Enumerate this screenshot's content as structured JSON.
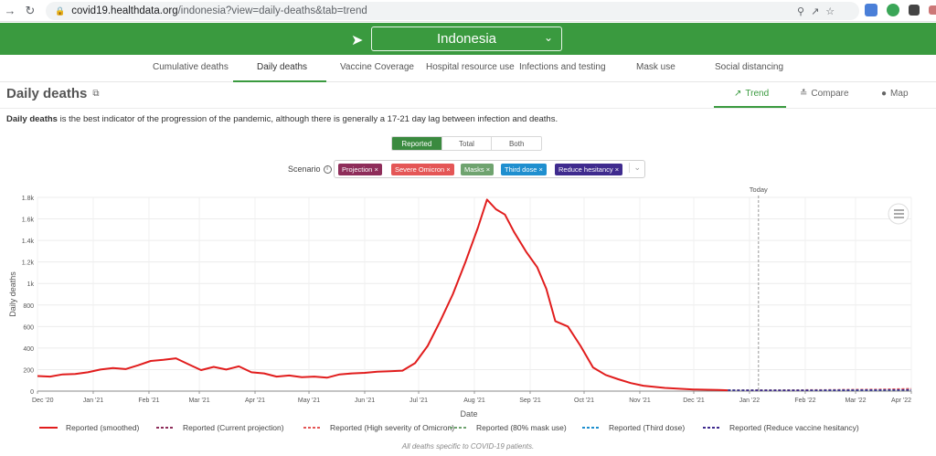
{
  "browser": {
    "url_host": "covid19.healthdata.org",
    "url_path": "/indonesia?view=daily-deaths&tab=trend"
  },
  "header": {
    "country": "Indonesia"
  },
  "tabs": [
    "Cumulative deaths",
    "Daily deaths",
    "Vaccine Coverage",
    "Hospital resource use",
    "Infections and testing",
    "Mask use",
    "Social distancing"
  ],
  "active_tab": "Daily deaths",
  "page": {
    "title": "Daily deaths",
    "view_tabs": [
      "Trend",
      "Compare",
      "Map"
    ],
    "active_view": "Trend",
    "description_bold": "Daily deaths",
    "description_rest": " is the best indicator of the progression of the pandemic, although there is generally a 17-21 day lag between infection and deaths."
  },
  "toggle": {
    "options": [
      "Reported",
      "Total",
      "Both"
    ],
    "selected": "Reported"
  },
  "scenario": {
    "label": "Scenario",
    "chips": [
      {
        "label": "Projection",
        "color": "#8e2d5a"
      },
      {
        "label": "Severe Omicron",
        "color": "#e45656"
      },
      {
        "label": "Masks",
        "color": "#6fa36f"
      },
      {
        "label": "Third dose",
        "color": "#1f8fcf"
      },
      {
        "label": "Reduce hesitancy",
        "color": "#3f2b8e"
      }
    ]
  },
  "footnote": "All deaths specific to COVID-19 patients.",
  "chart_data": {
    "type": "line",
    "xlabel": "Date",
    "ylabel": "Daily deaths",
    "ylim": [
      0,
      1800
    ],
    "yticks": [
      0,
      200,
      400,
      600,
      800,
      1000,
      1200,
      1400,
      1600,
      1800
    ],
    "ytick_labels": [
      "0",
      "200",
      "400",
      "600",
      "800",
      "1k",
      "1.2k",
      "1.4k",
      "1.6k",
      "1.8k"
    ],
    "x_range": [
      "2020-12-01",
      "2022-04-01"
    ],
    "x_ticks": [
      "2020-12-01",
      "2021-01-01",
      "2021-02-01",
      "2021-03-01",
      "2021-04-01",
      "2021-05-01",
      "2021-06-01",
      "2021-07-01",
      "2021-08-01",
      "2021-09-01",
      "2021-10-01",
      "2021-11-01",
      "2021-12-01",
      "2022-01-01",
      "2022-02-01",
      "2022-03-01",
      "2022-04-01"
    ],
    "x_tick_labels": [
      "Dec '20",
      "Jan '21",
      "Feb '21",
      "Mar '21",
      "Apr '21",
      "May '21",
      "Jun '21",
      "Jul '21",
      "Aug '21",
      "Sep '21",
      "Oct '21",
      "Nov '21",
      "Dec '21",
      "Jan '22",
      "Feb '22",
      "Mar '22",
      "Apr '22"
    ],
    "today": {
      "date": "2022-01-06",
      "label": "Today"
    },
    "grid": true,
    "legend_position": "bottom",
    "series": [
      {
        "name": "Reported (smoothed)",
        "color": "#e11d1d",
        "dash": "solid",
        "points": [
          [
            "2020-12-01",
            140
          ],
          [
            "2020-12-08",
            135
          ],
          [
            "2020-12-15",
            155
          ],
          [
            "2020-12-22",
            160
          ],
          [
            "2020-12-29",
            175
          ],
          [
            "2021-01-05",
            200
          ],
          [
            "2021-01-12",
            215
          ],
          [
            "2021-01-19",
            205
          ],
          [
            "2021-01-26",
            240
          ],
          [
            "2021-02-02",
            280
          ],
          [
            "2021-02-09",
            290
          ],
          [
            "2021-02-16",
            305
          ],
          [
            "2021-02-23",
            250
          ],
          [
            "2021-03-02",
            195
          ],
          [
            "2021-03-09",
            225
          ],
          [
            "2021-03-16",
            200
          ],
          [
            "2021-03-23",
            230
          ],
          [
            "2021-03-30",
            175
          ],
          [
            "2021-04-06",
            165
          ],
          [
            "2021-04-13",
            135
          ],
          [
            "2021-04-20",
            145
          ],
          [
            "2021-04-27",
            130
          ],
          [
            "2021-05-04",
            135
          ],
          [
            "2021-05-11",
            125
          ],
          [
            "2021-05-18",
            155
          ],
          [
            "2021-05-25",
            165
          ],
          [
            "2021-06-01",
            170
          ],
          [
            "2021-06-08",
            180
          ],
          [
            "2021-06-15",
            185
          ],
          [
            "2021-06-22",
            190
          ],
          [
            "2021-06-29",
            260
          ],
          [
            "2021-07-06",
            420
          ],
          [
            "2021-07-13",
            650
          ],
          [
            "2021-07-20",
            900
          ],
          [
            "2021-07-27",
            1200
          ],
          [
            "2021-08-03",
            1520
          ],
          [
            "2021-08-08",
            1780
          ],
          [
            "2021-08-13",
            1690
          ],
          [
            "2021-08-18",
            1640
          ],
          [
            "2021-08-23",
            1480
          ],
          [
            "2021-08-30",
            1290
          ],
          [
            "2021-09-05",
            1150
          ],
          [
            "2021-09-10",
            950
          ],
          [
            "2021-09-15",
            650
          ],
          [
            "2021-09-22",
            600
          ],
          [
            "2021-09-29",
            420
          ],
          [
            "2021-10-06",
            220
          ],
          [
            "2021-10-13",
            150
          ],
          [
            "2021-10-20",
            110
          ],
          [
            "2021-10-27",
            75
          ],
          [
            "2021-11-03",
            50
          ],
          [
            "2021-11-15",
            30
          ],
          [
            "2021-12-01",
            15
          ],
          [
            "2021-12-15",
            10
          ],
          [
            "2021-12-20",
            8
          ]
        ]
      },
      {
        "name": "Reported (Current projection)",
        "color": "#8e2d5a",
        "dash": "dashed",
        "points": [
          [
            "2021-12-20",
            8
          ],
          [
            "2022-01-15",
            8
          ],
          [
            "2022-02-15",
            10
          ],
          [
            "2022-03-15",
            14
          ],
          [
            "2022-04-01",
            20
          ]
        ]
      },
      {
        "name": "Reported (High severity of Omicron)",
        "color": "#e45656",
        "dash": "dashed",
        "points": [
          [
            "2021-12-20",
            8
          ],
          [
            "2022-01-15",
            9
          ],
          [
            "2022-02-15",
            12
          ],
          [
            "2022-03-15",
            16
          ],
          [
            "2022-04-01",
            22
          ]
        ]
      },
      {
        "name": "Reported (80% mask use)",
        "color": "#6fa36f",
        "dash": "dashed",
        "points": [
          [
            "2021-12-20",
            8
          ],
          [
            "2022-01-15",
            7
          ],
          [
            "2022-02-15",
            7
          ],
          [
            "2022-03-15",
            8
          ],
          [
            "2022-04-01",
            9
          ]
        ]
      },
      {
        "name": "Reported (Third dose)",
        "color": "#1f8fcf",
        "dash": "dashed",
        "points": [
          [
            "2021-12-20",
            8
          ],
          [
            "2022-01-15",
            7
          ],
          [
            "2022-02-15",
            8
          ],
          [
            "2022-03-15",
            9
          ],
          [
            "2022-04-01",
            11
          ]
        ]
      },
      {
        "name": "Reported (Reduce vaccine hesitancy)",
        "color": "#3f2b8e",
        "dash": "dashed",
        "points": [
          [
            "2021-12-20",
            8
          ],
          [
            "2022-01-15",
            7
          ],
          [
            "2022-02-15",
            8
          ],
          [
            "2022-03-15",
            9
          ],
          [
            "2022-04-01",
            10
          ]
        ]
      }
    ]
  }
}
